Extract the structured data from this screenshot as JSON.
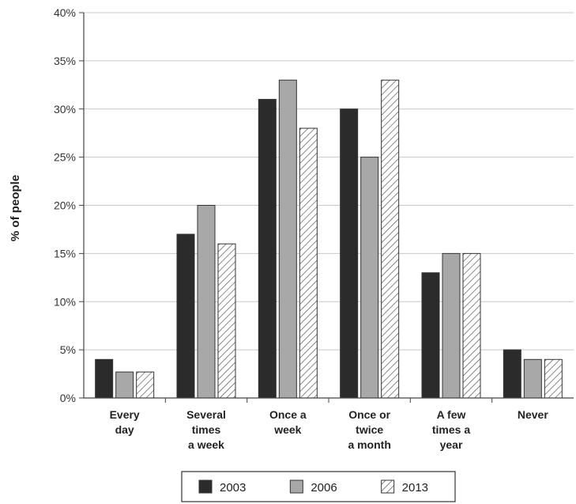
{
  "chart_data": {
    "type": "bar",
    "title": "",
    "xlabel": "",
    "ylabel": "% of people",
    "ylim": [
      0,
      40
    ],
    "yticks": [
      "0%",
      "5%",
      "10%",
      "15%",
      "20%",
      "25%",
      "30%",
      "35%",
      "40%"
    ],
    "grid": true,
    "legend_position": "bottom",
    "categories": [
      [
        "Every",
        "day"
      ],
      [
        "Several",
        "times",
        "a week"
      ],
      [
        "Once a",
        "week"
      ],
      [
        "Once or",
        "twice",
        "a month"
      ],
      [
        "A few",
        "times a",
        "year"
      ],
      [
        "Never"
      ]
    ],
    "series": [
      {
        "name": "2003",
        "values": [
          4,
          17,
          31,
          30,
          13,
          5
        ],
        "fill": "#2b2b2b",
        "pattern": "solid"
      },
      {
        "name": "2006",
        "values": [
          2.7,
          20,
          33,
          25,
          15,
          4
        ],
        "fill": "#a8a8a8",
        "pattern": "solid"
      },
      {
        "name": "2013",
        "values": [
          2.7,
          16,
          28,
          33,
          15,
          4
        ],
        "fill": "#ffffff",
        "pattern": "hatch"
      }
    ]
  }
}
